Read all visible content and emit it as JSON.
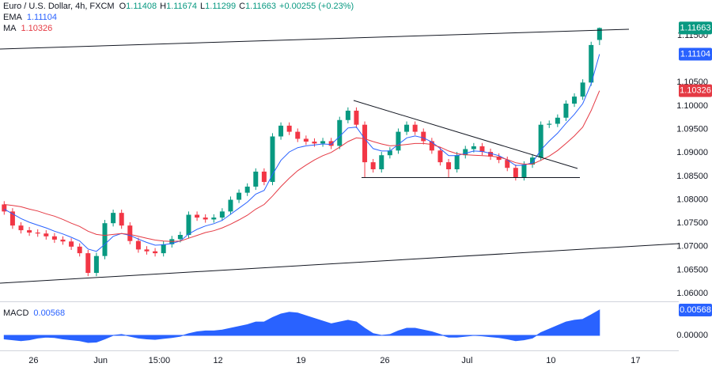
{
  "chart_data": [
    {
      "type": "candlestick",
      "title": "Euro / U.S. Dollar, 4h, FXCM",
      "ohlc_labels": [
        "O",
        "H",
        "L",
        "C"
      ],
      "change_label": "+0.00255 (+0.23%)",
      "up_color": "#089981",
      "down_color": "#f23645",
      "open": [
        1.079,
        1.0775,
        1.0745,
        1.0735,
        1.073,
        1.0728,
        1.0722,
        1.0715,
        1.0711,
        1.07,
        1.0686,
        1.0644,
        1.068,
        1.075,
        1.0772,
        1.0745,
        1.0712,
        1.0694,
        1.069,
        1.0686,
        1.0705,
        1.0716,
        1.0725,
        1.0768,
        1.0762,
        1.0758,
        1.0762,
        1.0775,
        1.08,
        1.0815,
        1.0828,
        1.086,
        1.0838,
        1.0935,
        1.0958,
        1.0945,
        1.093,
        1.0924,
        1.092,
        1.0925,
        1.0915,
        1.097,
        1.099,
        1.096,
        1.088,
        1.0865,
        1.0895,
        1.0905,
        1.0945,
        1.096,
        1.0945,
        1.0925,
        1.0905,
        1.088,
        1.0865,
        1.0895,
        1.0908,
        1.0914,
        1.0902,
        1.0892,
        1.0885,
        1.0868,
        1.0848,
        1.0875,
        1.089,
        1.096,
        1.0962,
        1.0975,
        1.1005,
        1.102,
        1.105,
        1.11408
      ],
      "high": [
        1.0797,
        1.0782,
        1.0752,
        1.0742,
        1.0737,
        1.0735,
        1.0729,
        1.0722,
        1.0718,
        1.0707,
        1.0693,
        1.0687,
        1.0757,
        1.0779,
        1.0779,
        1.0752,
        1.0719,
        1.0701,
        1.0697,
        1.0712,
        1.0723,
        1.0732,
        1.0775,
        1.0775,
        1.0769,
        1.0769,
        1.0782,
        1.0807,
        1.0822,
        1.0835,
        1.0867,
        1.0867,
        1.0942,
        1.0965,
        1.0965,
        1.0952,
        1.0937,
        1.0931,
        1.0932,
        1.0932,
        1.0977,
        1.0997,
        1.0997,
        1.0967,
        1.0887,
        1.0902,
        1.0912,
        1.0952,
        1.0967,
        1.0967,
        1.0952,
        1.0932,
        1.0912,
        1.0887,
        1.0902,
        1.0915,
        1.0921,
        1.0921,
        1.0909,
        1.0899,
        1.0892,
        1.0875,
        1.0882,
        1.0897,
        1.0967,
        1.0969,
        1.0982,
        1.1012,
        1.1027,
        1.1057,
        1.1137,
        1.11674
      ],
      "low": [
        1.0768,
        1.0738,
        1.0728,
        1.0723,
        1.0721,
        1.0715,
        1.0708,
        1.0704,
        1.0693,
        1.0679,
        1.0637,
        1.0637,
        1.0673,
        1.0743,
        1.0738,
        1.0705,
        1.0687,
        1.0683,
        1.0679,
        1.0679,
        1.0698,
        1.0709,
        1.0718,
        1.0755,
        1.0751,
        1.0751,
        1.0755,
        1.0768,
        1.0793,
        1.0808,
        1.0821,
        1.0831,
        1.0831,
        1.0928,
        1.0938,
        1.0923,
        1.0917,
        1.0913,
        1.0913,
        1.0908,
        1.0908,
        1.0963,
        1.0953,
        1.0847,
        1.0858,
        1.0858,
        1.0888,
        1.0898,
        1.0938,
        1.0938,
        1.0918,
        1.0898,
        1.0873,
        1.0847,
        1.0858,
        1.0888,
        1.0901,
        1.0895,
        1.0885,
        1.0878,
        1.0861,
        1.0841,
        1.0841,
        1.0868,
        1.0883,
        1.0953,
        1.0955,
        1.0968,
        1.0998,
        1.1013,
        1.1043,
        1.11299
      ],
      "close": [
        1.0775,
        1.0745,
        1.0735,
        1.073,
        1.0728,
        1.0722,
        1.0715,
        1.0711,
        1.07,
        1.0686,
        1.0644,
        1.068,
        1.075,
        1.0772,
        1.0745,
        1.0712,
        1.0694,
        1.069,
        1.0686,
        1.0705,
        1.0716,
        1.0725,
        1.0768,
        1.0762,
        1.0758,
        1.0762,
        1.0775,
        1.08,
        1.0815,
        1.0828,
        1.086,
        1.0838,
        1.0935,
        1.0958,
        1.0945,
        1.093,
        1.0924,
        1.092,
        1.0925,
        1.0915,
        1.097,
        1.099,
        1.096,
        1.088,
        1.0865,
        1.0895,
        1.0905,
        1.0945,
        1.096,
        1.0945,
        1.0925,
        1.0905,
        1.088,
        1.0865,
        1.0895,
        1.0908,
        1.0914,
        1.0902,
        1.0892,
        1.0885,
        1.0868,
        1.0848,
        1.0875,
        1.089,
        1.096,
        1.0962,
        1.0975,
        1.1005,
        1.102,
        1.105,
        1.113,
        1.11663
      ],
      "series": [
        {
          "name": "EMA",
          "color": "#2962ff",
          "values": [
            1.078,
            1.077,
            1.076,
            1.0752,
            1.0746,
            1.074,
            1.0733,
            1.0727,
            1.072,
            1.0712,
            1.0695,
            1.069,
            1.0705,
            1.0722,
            1.0728,
            1.0724,
            1.0716,
            1.0709,
            1.0703,
            1.0704,
            1.0707,
            1.0712,
            1.0727,
            1.0737,
            1.0744,
            1.0749,
            1.0756,
            1.0769,
            1.0782,
            1.0795,
            1.0812,
            1.082,
            1.0854,
            1.0884,
            1.0902,
            1.0911,
            1.0915,
            1.0917,
            1.0919,
            1.0918,
            1.0935,
            1.0953,
            1.0955,
            1.093,
            1.0909,
            1.0904,
            1.0904,
            1.0918,
            1.0932,
            1.0936,
            1.0932,
            1.0923,
            1.0909,
            1.0894,
            1.0894,
            1.0899,
            1.0904,
            1.0903,
            1.0899,
            1.0894,
            1.0885,
            1.0873,
            1.0874,
            1.0879,
            1.0906,
            1.0925,
            1.0942,
            1.0963,
            1.0982,
            1.1005,
            1.1047,
            1.11104
          ]
        },
        {
          "name": "MA",
          "color": "#e53a44",
          "values": [
            1.079,
            1.0788,
            1.0785,
            1.078,
            1.0776,
            1.077,
            1.0765,
            1.0758,
            1.075,
            1.0743,
            1.0733,
            1.0726,
            1.0724,
            1.0726,
            1.0728,
            1.0726,
            1.0722,
            1.0718,
            1.0714,
            1.0712,
            1.0711,
            1.0712,
            1.0718,
            1.0724,
            1.073,
            1.0734,
            1.074,
            1.0748,
            1.0757,
            1.0767,
            1.078,
            1.079,
            1.0808,
            1.0828,
            1.0846,
            1.0862,
            1.0874,
            1.0885,
            1.0894,
            1.0901,
            1.0912,
            1.0924,
            1.0932,
            1.093,
            1.0924,
            1.0919,
            1.0915,
            1.0916,
            1.0918,
            1.092,
            1.092,
            1.0918,
            1.0912,
            1.0904,
            1.0898,
            1.0896,
            1.0895,
            1.0894,
            1.0893,
            1.0891,
            1.0886,
            1.0879,
            1.0876,
            1.0876,
            1.0884,
            1.0893,
            1.0905,
            1.092,
            1.0936,
            1.0955,
            1.099,
            1.10326
          ]
        }
      ],
      "xlim": [
        -0.5,
        80.45
      ],
      "xticks": [
        {
          "value": 3.5,
          "label": "26"
        },
        {
          "value": 11.5,
          "label": "Jun"
        },
        {
          "value": 18.5,
          "label": "15:00"
        },
        {
          "value": 25.5,
          "label": "12"
        },
        {
          "value": 35.4,
          "label": "19"
        },
        {
          "value": 45.4,
          "label": "26"
        },
        {
          "value": 55.2,
          "label": "Jul"
        },
        {
          "value": 65.2,
          "label": "10"
        },
        {
          "value": 75.3,
          "label": "17"
        }
      ],
      "ylim": [
        1.0585,
        1.1226
      ],
      "yticks": [
        {
          "value": 1.06,
          "label": "1.06000"
        },
        {
          "value": 1.065,
          "label": "1.06500"
        },
        {
          "value": 1.07,
          "label": "1.07000"
        },
        {
          "value": 1.075,
          "label": "1.07500"
        },
        {
          "value": 1.08,
          "label": "1.08000"
        },
        {
          "value": 1.085,
          "label": "1.08500"
        },
        {
          "value": 1.09,
          "label": "1.09000"
        },
        {
          "value": 1.095,
          "label": "1.09500"
        },
        {
          "value": 1.1,
          "label": "1.10000"
        },
        {
          "value": 1.105,
          "label": "1.10500"
        },
        {
          "value": 1.115,
          "label": "1.11500"
        }
      ],
      "grid": false
    },
    {
      "type": "area",
      "series": [
        {
          "name": "MACD",
          "color": "#2962ff",
          "values": [
            -0.0008,
            -0.001,
            -0.0012,
            -0.001,
            -0.0006,
            -0.0004,
            -0.0005,
            -0.0008,
            -0.001,
            -0.0012,
            -0.0016,
            -0.0015,
            -0.0008,
            0.0,
            0.0002,
            -0.0002,
            -0.0006,
            -0.0008,
            -0.0009,
            -0.0007,
            -0.0005,
            -0.0002,
            0.0004,
            0.0008,
            0.001,
            0.001,
            0.0012,
            0.0016,
            0.002,
            0.0024,
            0.003,
            0.003,
            0.004,
            0.0048,
            0.0052,
            0.005,
            0.0044,
            0.0038,
            0.0032,
            0.0026,
            0.003,
            0.0034,
            0.003,
            0.0016,
            0.0004,
            0.0,
            0.0002,
            0.001,
            0.0016,
            0.0016,
            0.0012,
            0.0008,
            0.0002,
            -0.0004,
            -0.0004,
            -0.0002,
            0.0,
            -0.0001,
            -0.0003,
            -0.0005,
            -0.0008,
            -0.0012,
            -0.001,
            -0.0006,
            0.0006,
            0.0014,
            0.0022,
            0.003,
            0.0034,
            0.0036,
            0.0046,
            0.00568
          ]
        }
      ],
      "ylim": [
        -0.00284,
        0.00728
      ],
      "yticks": [
        {
          "value": 0,
          "label": "0.00000"
        }
      ]
    }
  ]
}
